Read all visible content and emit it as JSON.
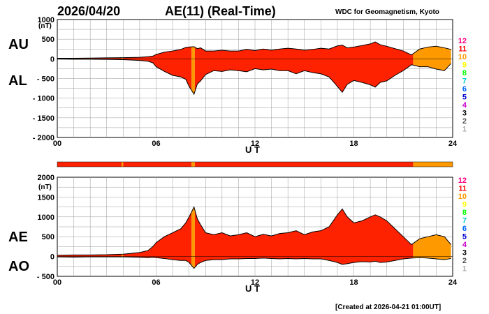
{
  "header": {
    "date": "2026/04/20",
    "title": "AE(11) (Real-Time)",
    "source": "WDC for Geomagnetism, Kyoto"
  },
  "footer": {
    "created": "[Created at 2026-04-21 01:00UT]"
  },
  "colors": {
    "red": "#ff2200",
    "orange": "#ff9900",
    "outline": "#000000",
    "grid": "#999999",
    "station_colors": [
      "#ff0080",
      "#ff0000",
      "#ff9900",
      "#ffff00",
      "#00ff00",
      "#00cccc",
      "#0066ff",
      "#0000cc",
      "#cc00cc",
      "#000000",
      "#555555",
      "#aaaaaa"
    ]
  },
  "station_counts": [
    "12",
    "11",
    "10",
    "9",
    "8",
    "7",
    "6",
    "5",
    "4",
    "3",
    "2",
    "1"
  ],
  "availability_bar": {
    "segments": [
      {
        "from": 0.0,
        "to": 3.9,
        "color": "red"
      },
      {
        "from": 3.9,
        "to": 4.0,
        "color": "orange"
      },
      {
        "from": 4.0,
        "to": 8.15,
        "color": "red"
      },
      {
        "from": 8.15,
        "to": 8.35,
        "color": "orange"
      },
      {
        "from": 8.35,
        "to": 21.6,
        "color": "red"
      },
      {
        "from": 21.6,
        "to": 24.0,
        "color": "orange"
      }
    ]
  },
  "chart_data": [
    {
      "type": "area",
      "panel": "AU/AL",
      "labels": {
        "upper": "AU",
        "lower": "AL"
      },
      "ylabel_unit": "(nT)",
      "xlabel": "U T",
      "xlim": [
        0,
        24
      ],
      "ylim": [
        -2000,
        1000
      ],
      "yticks": [
        1000,
        500,
        0,
        -500,
        -1000,
        -1500,
        -2000
      ],
      "ytick_labels": [
        "1000",
        "500",
        "0",
        "- 500",
        "- 1000",
        "- 1500",
        "- 2000"
      ],
      "xticks": [
        0,
        6,
        12,
        18,
        24
      ],
      "xtick_labels": [
        "00",
        "06",
        "12",
        "18",
        "24"
      ],
      "grid": true,
      "x": [
        0,
        1,
        2,
        3,
        4,
        5,
        5.5,
        5.8,
        6,
        6.5,
        7,
        7.5,
        7.8,
        8,
        8.3,
        8.5,
        8.7,
        9,
        9.5,
        10,
        10.5,
        11,
        11.5,
        12,
        12.5,
        13,
        13.5,
        14,
        14.5,
        15,
        15.5,
        16,
        16.5,
        17,
        17.3,
        17.6,
        18,
        18.5,
        19,
        19.3,
        19.6,
        20,
        20.5,
        21,
        21.5,
        22,
        22.5,
        23,
        23.5,
        23.9
      ],
      "series": [
        {
          "name": "AU",
          "values": [
            15,
            15,
            20,
            25,
            30,
            40,
            55,
            70,
            110,
            170,
            200,
            240,
            290,
            300,
            310,
            260,
            280,
            200,
            200,
            220,
            200,
            200,
            240,
            210,
            250,
            220,
            250,
            270,
            250,
            220,
            240,
            270,
            250,
            330,
            350,
            280,
            300,
            340,
            380,
            430,
            360,
            320,
            260,
            200,
            100,
            250,
            300,
            320,
            280,
            240
          ]
        },
        {
          "name": "AL",
          "values": [
            -5,
            -10,
            -10,
            -15,
            -20,
            -40,
            -60,
            -100,
            -200,
            -320,
            -420,
            -460,
            -520,
            -700,
            -900,
            -640,
            -560,
            -400,
            -300,
            -320,
            -280,
            -300,
            -330,
            -250,
            -280,
            -260,
            -300,
            -300,
            -380,
            -300,
            -350,
            -380,
            -460,
            -700,
            -850,
            -650,
            -550,
            -600,
            -660,
            -720,
            -600,
            -560,
            -420,
            -300,
            -150,
            -200,
            -200,
            -260,
            -300,
            -120
          ]
        }
      ]
    },
    {
      "type": "area",
      "panel": "AE/AO",
      "labels": {
        "upper": "AE",
        "lower": "AO"
      },
      "ylabel_unit": "(nT)",
      "xlabel": "U T",
      "xlim": [
        0,
        24
      ],
      "ylim": [
        -500,
        2000
      ],
      "yticks": [
        2000,
        1500,
        1000,
        500,
        0,
        -500
      ],
      "ytick_labels": [
        "2000",
        "1500",
        "1000",
        "500",
        "0",
        "- 500"
      ],
      "xticks": [
        0,
        6,
        12,
        18,
        24
      ],
      "xtick_labels": [
        "00",
        "06",
        "12",
        "18",
        "24"
      ],
      "grid": true,
      "x": [
        0,
        1,
        2,
        3,
        4,
        5,
        5.5,
        5.8,
        6,
        6.5,
        7,
        7.5,
        7.8,
        8,
        8.3,
        8.5,
        8.7,
        9,
        9.5,
        10,
        10.5,
        11,
        11.5,
        12,
        12.5,
        13,
        13.5,
        14,
        14.5,
        15,
        15.5,
        16,
        16.5,
        17,
        17.3,
        17.6,
        18,
        18.5,
        19,
        19.3,
        19.6,
        20,
        20.5,
        21,
        21.5,
        22,
        22.5,
        23,
        23.5,
        23.9
      ],
      "series": [
        {
          "name": "AE",
          "values": [
            30,
            40,
            40,
            45,
            60,
            100,
            150,
            250,
            350,
            500,
            600,
            700,
            850,
            1000,
            1250,
            950,
            800,
            600,
            550,
            600,
            520,
            550,
            600,
            500,
            560,
            520,
            580,
            600,
            650,
            550,
            620,
            650,
            750,
            1050,
            1200,
            1000,
            850,
            900,
            1000,
            1050,
            1000,
            900,
            700,
            500,
            300,
            450,
            500,
            550,
            500,
            300
          ]
        },
        {
          "name": "AO",
          "values": [
            -10,
            -15,
            -10,
            -10,
            -10,
            -20,
            -30,
            -20,
            -30,
            -50,
            -80,
            -100,
            -100,
            -150,
            -300,
            -200,
            -150,
            -100,
            -80,
            -80,
            -60,
            -60,
            -50,
            -50,
            -40,
            -50,
            -60,
            -50,
            -60,
            -50,
            -60,
            -60,
            -100,
            -150,
            -200,
            -180,
            -150,
            -130,
            -140,
            -120,
            -150,
            -140,
            -100,
            -60,
            -40,
            -30,
            -40,
            -60,
            -80,
            -50
          ]
        }
      ]
    }
  ]
}
